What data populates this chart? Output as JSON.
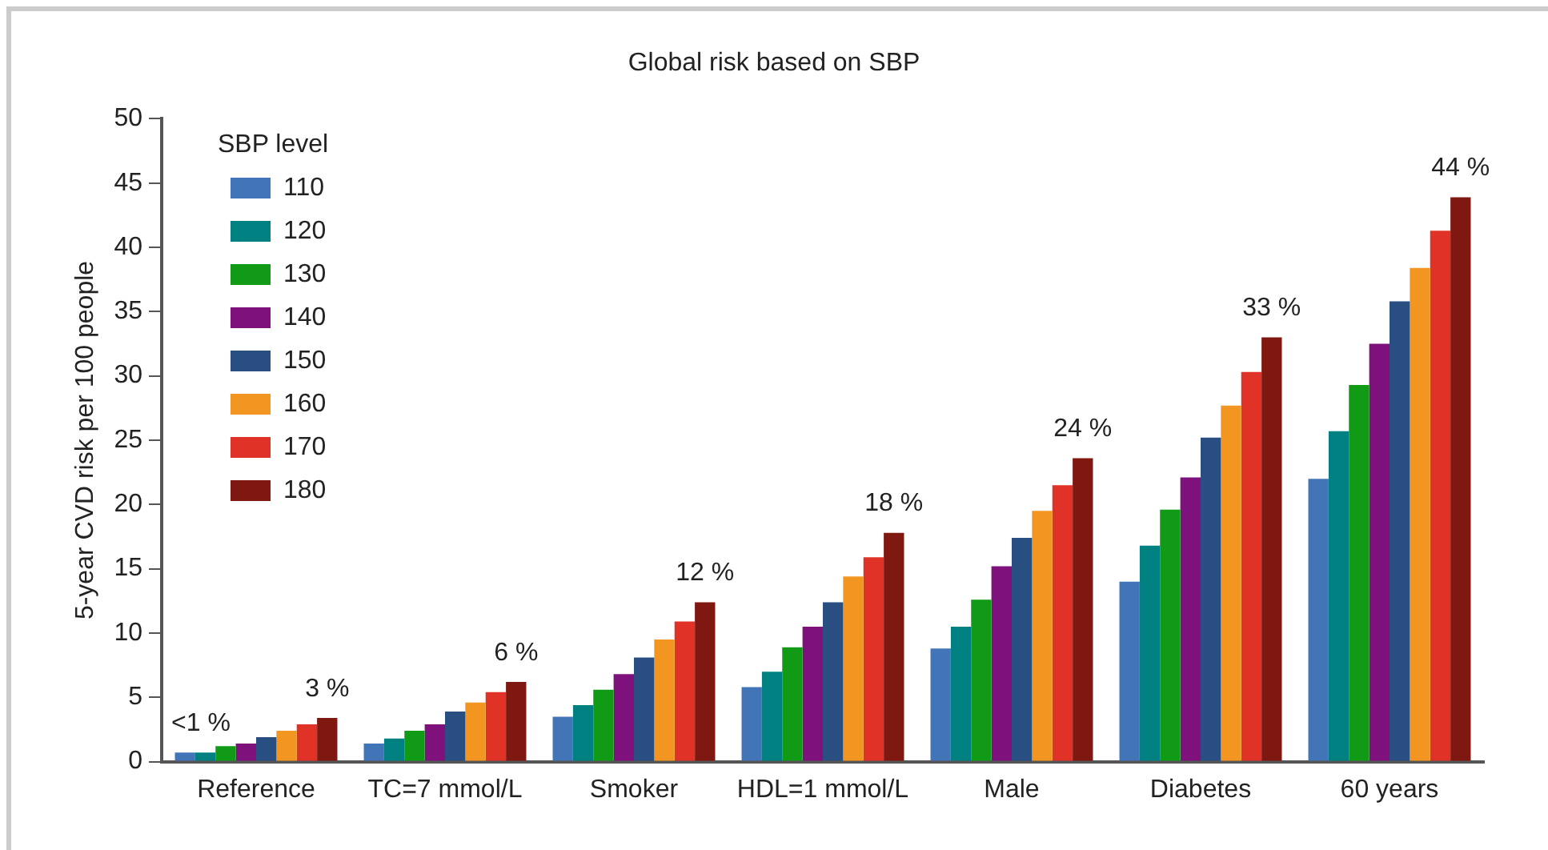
{
  "chart_data": {
    "type": "bar",
    "title": "Global risk based on SBP",
    "ylabel": "5-year CVD risk per 100 people",
    "legend_title": "SBP level",
    "legend": "top left",
    "grid": false,
    "categories": [
      "Reference",
      "TC=7 mmol/L",
      "Smoker",
      "HDL=1 mmol/L",
      "Male",
      "Diabetes",
      "60 years"
    ],
    "ylim": [
      0,
      50
    ],
    "yticks": [
      0,
      5,
      10,
      15,
      20,
      25,
      30,
      35,
      40,
      45,
      50
    ],
    "series": [
      {
        "name": "110",
        "color": "#4274b8",
        "values": [
          0.7,
          1.4,
          3.5,
          5.8,
          8.8,
          14.0,
          22.0
        ],
        "value_labels": [
          "<1 %",
          null,
          null,
          null,
          null,
          null,
          null
        ]
      },
      {
        "name": "120",
        "color": "#008080",
        "values": [
          0.7,
          1.8,
          4.4,
          7.0,
          10.5,
          16.8,
          25.7
        ]
      },
      {
        "name": "130",
        "color": "#109a16",
        "values": [
          1.2,
          2.4,
          5.6,
          8.9,
          12.6,
          19.6,
          29.3
        ]
      },
      {
        "name": "140",
        "color": "#7f117d",
        "values": [
          1.4,
          2.9,
          6.8,
          10.5,
          15.2,
          22.1,
          32.5
        ]
      },
      {
        "name": "150",
        "color": "#284e82",
        "values": [
          1.9,
          3.9,
          8.1,
          12.4,
          17.4,
          25.2,
          35.8
        ]
      },
      {
        "name": "160",
        "color": "#f39621",
        "values": [
          2.4,
          4.6,
          9.5,
          14.4,
          19.5,
          27.7,
          38.4
        ]
      },
      {
        "name": "170",
        "color": "#e03226",
        "values": [
          2.9,
          5.4,
          10.9,
          15.9,
          21.5,
          30.3,
          41.3
        ]
      },
      {
        "name": "180",
        "color": "#7f1811",
        "values": [
          3.4,
          6.2,
          12.4,
          17.8,
          23.6,
          33.0,
          43.9
        ],
        "value_labels": [
          "3 %",
          "6 %",
          "12 %",
          "18 %",
          "24 %",
          "33 %",
          "44 %"
        ]
      }
    ]
  }
}
